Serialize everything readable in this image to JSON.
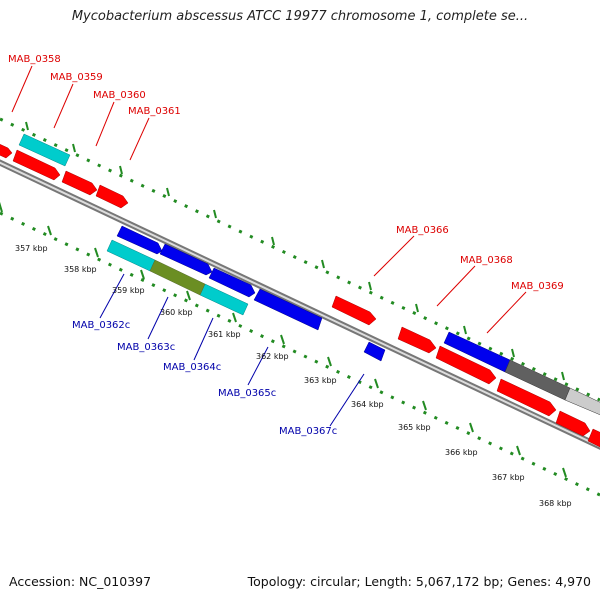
{
  "title": "Mycobacterium abscessus ATCC 19977 chromosome 1, complete se...",
  "footer": {
    "accession": "Accession: NC_010397",
    "summary": "Topology: circular; Length: 5,067,172 bp; Genes: 4,970"
  },
  "colors": {
    "forward_gene": "#ff0000",
    "reverse_gene": "#0000ee",
    "forward_label": "#dd0000",
    "reverse_label": "#0000aa",
    "rna": "#00cccc",
    "pseudo": "#6b8e23",
    "backbone": "#888888",
    "ticks": "#228b22",
    "dark_gene": "#606060",
    "light_gene": "#cccccc"
  },
  "scale": {
    "unit": "kbp",
    "ticks": [
      {
        "pos": 357,
        "label": "357 kbp"
      },
      {
        "pos": 358,
        "label": "358 kbp"
      },
      {
        "pos": 359,
        "label": "359 kbp"
      },
      {
        "pos": 360,
        "label": "360 kbp"
      },
      {
        "pos": 361,
        "label": "361 kbp"
      },
      {
        "pos": 362,
        "label": "362 kbp"
      },
      {
        "pos": 363,
        "label": "363 kbp"
      },
      {
        "pos": 364,
        "label": "364 kbp"
      },
      {
        "pos": 365,
        "label": "365 kbp"
      },
      {
        "pos": 366,
        "label": "366 kbp"
      },
      {
        "pos": 367,
        "label": "367 kbp"
      },
      {
        "pos": 368,
        "label": "368 kbp"
      }
    ]
  },
  "gene_labels": {
    "forward": [
      "MAB_0358",
      "MAB_0359",
      "MAB_0360",
      "MAB_0361",
      "MAB_0366",
      "MAB_0368",
      "MAB_0369"
    ],
    "reverse": [
      "MAB_0362c",
      "MAB_0363c",
      "MAB_0364c",
      "MAB_0365c",
      "MAB_0367c"
    ]
  }
}
